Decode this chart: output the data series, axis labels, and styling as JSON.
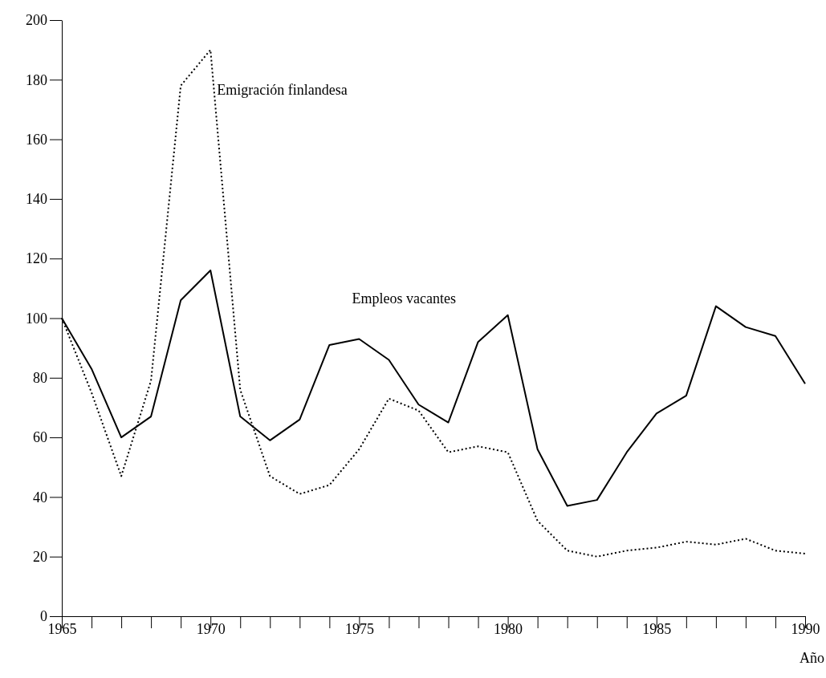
{
  "chart_data": {
    "type": "line",
    "xlabel": "Año",
    "x": [
      1965,
      1966,
      1967,
      1968,
      1969,
      1970,
      1971,
      1972,
      1973,
      1974,
      1975,
      1976,
      1977,
      1978,
      1979,
      1980,
      1981,
      1982,
      1983,
      1984,
      1985,
      1986,
      1987,
      1988,
      1989,
      1990
    ],
    "xlim": [
      1965,
      1990
    ],
    "xticks": [
      1965,
      {
        "value": 1966,
        "label": null
      },
      {
        "value": 1967,
        "label": null
      },
      {
        "value": 1968,
        "label": null
      },
      {
        "value": 1969,
        "label": null
      },
      1970,
      {
        "value": 1971,
        "label": null
      },
      {
        "value": 1972,
        "label": null
      },
      {
        "value": 1973,
        "label": null
      },
      {
        "value": 1974,
        "label": null
      },
      1975,
      {
        "value": 1976,
        "label": null
      },
      {
        "value": 1977,
        "label": null
      },
      {
        "value": 1978,
        "label": null
      },
      {
        "value": 1979,
        "label": null
      },
      1980,
      {
        "value": 1981,
        "label": null
      },
      {
        "value": 1982,
        "label": null
      },
      {
        "value": 1983,
        "label": null
      },
      {
        "value": 1984,
        "label": null
      },
      1985,
      {
        "value": 1986,
        "label": null
      },
      {
        "value": 1987,
        "label": null
      },
      {
        "value": 1988,
        "label": null
      },
      {
        "value": 1989,
        "label": null
      },
      1990
    ],
    "ylim": [
      0,
      200
    ],
    "yticks": [
      0,
      20,
      40,
      60,
      80,
      100,
      120,
      140,
      160,
      180,
      200
    ],
    "grid": false,
    "legend": false,
    "marker": "none",
    "series": [
      {
        "name": "Empleos vacantes",
        "color": "#000000",
        "line_style": "solid",
        "values": [
          100,
          83,
          60,
          67,
          106,
          116,
          67,
          59,
          66,
          91,
          93,
          86,
          71,
          65,
          92,
          101,
          56,
          37,
          39,
          55,
          68,
          74,
          104,
          97,
          94,
          78
        ]
      },
      {
        "name": "Emigración finlandesa",
        "color": "#000000",
        "line_style": "dotted",
        "values": [
          100,
          75,
          47,
          79,
          178,
          190,
          76,
          47,
          41,
          44,
          56,
          73,
          69,
          55,
          57,
          55,
          32,
          22,
          20,
          22,
          23,
          25,
          24,
          26,
          22,
          21
        ]
      }
    ]
  }
}
